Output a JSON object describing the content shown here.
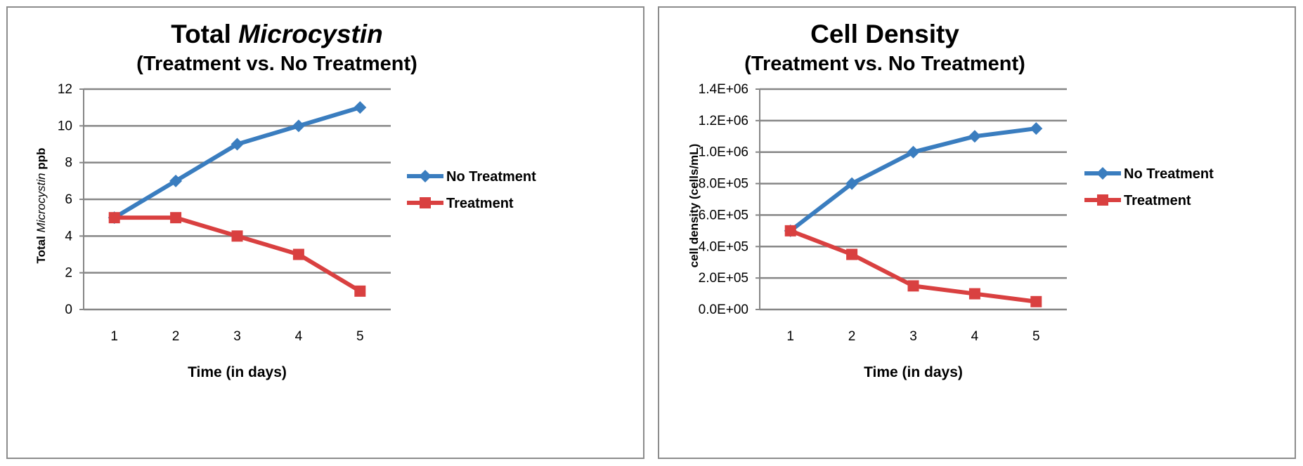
{
  "chart_data": [
    {
      "type": "line",
      "title_main": "Total ",
      "title_italic": "Microcystin",
      "subtitle": "(Treatment vs. No Treatment)",
      "xlabel": "Time (in days)",
      "ylabel_pre": "Total ",
      "ylabel_italic": "Microcystin",
      "ylabel_post": "  ppb",
      "x": [
        1,
        2,
        3,
        4,
        5
      ],
      "ylim": [
        0,
        12
      ],
      "yticks": [
        0,
        2,
        4,
        6,
        8,
        10,
        12
      ],
      "ytick_labels": [
        "0",
        "2",
        "4",
        "6",
        "8",
        "10",
        "12"
      ],
      "grid": true,
      "legend_position": "right",
      "series": [
        {
          "name": "No Treatment",
          "values": [
            5,
            7,
            9,
            10,
            11
          ],
          "color": "#3a7dbf",
          "marker": "diamond"
        },
        {
          "name": "Treatment",
          "values": [
            5,
            5,
            4,
            3,
            1
          ],
          "color": "#d94040",
          "marker": "square"
        }
      ]
    },
    {
      "type": "line",
      "title_main": "Cell Density",
      "title_italic": "",
      "subtitle": "(Treatment vs. No Treatment)",
      "xlabel": "Time (in days)",
      "ylabel_pre": "cell density (cells/mL)",
      "ylabel_italic": "",
      "ylabel_post": "",
      "x": [
        1,
        2,
        3,
        4,
        5
      ],
      "ylim": [
        0,
        1400000
      ],
      "yticks": [
        0,
        200000,
        400000,
        600000,
        800000,
        1000000,
        1200000,
        1400000
      ],
      "ytick_labels": [
        "0.0E+00",
        "2.0E+05",
        "4.0E+05",
        "6.0E+05",
        "8.0E+05",
        "1.0E+06",
        "1.2E+06",
        "1.4E+06"
      ],
      "grid": true,
      "legend_position": "right",
      "series": [
        {
          "name": "No Treatment",
          "values": [
            500000,
            800000,
            1000000,
            1100000,
            1150000
          ],
          "color": "#3a7dbf",
          "marker": "diamond"
        },
        {
          "name": "Treatment",
          "values": [
            500000,
            350000,
            150000,
            100000,
            50000
          ],
          "color": "#d94040",
          "marker": "square"
        }
      ]
    }
  ]
}
